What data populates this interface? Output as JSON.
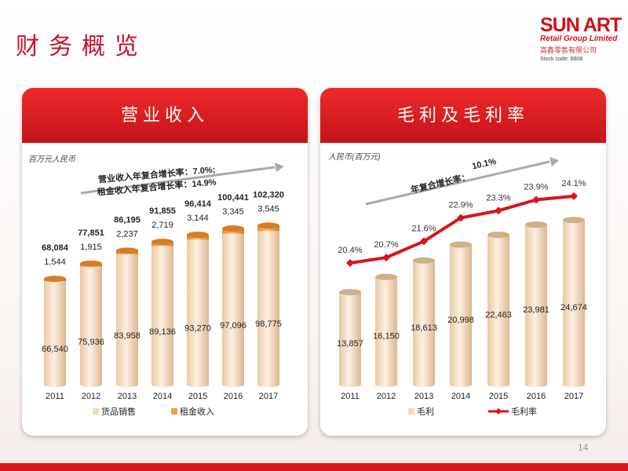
{
  "page": {
    "title": "财务概览",
    "page_number": "14"
  },
  "logo": {
    "name": "SUN ART",
    "sub": "Retail Group Limited",
    "cn": "高鑫零售有限公司",
    "stock": "Stock code: 6808"
  },
  "chart_data": [
    {
      "type": "bar",
      "title": "营业收入",
      "unit": "百万元人民币",
      "annotation": [
        "营业收入年复合增长率：7.0%;",
        "租金收入年复合增长率：14.9%"
      ],
      "categories": [
        "2011",
        "2012",
        "2013",
        "2014",
        "2015",
        "2016",
        "2017"
      ],
      "series": [
        {
          "name": "货品销售",
          "values": [
            66540,
            75936,
            83958,
            89136,
            93270,
            97096,
            98775
          ],
          "color": "#f3d9bb"
        },
        {
          "name": "租金收入",
          "values": [
            1544,
            1915,
            2237,
            2719,
            3144,
            3345,
            3545
          ],
          "color": "#f0a04b"
        }
      ],
      "totals": [
        68084,
        77851,
        86195,
        91855,
        96414,
        100441,
        102320
      ],
      "labels_values": [
        "66,540",
        "75,936",
        "83,958",
        "89,136",
        "93,270",
        "97,096",
        "98,775"
      ],
      "labels_rent": [
        "1,544",
        "1,915",
        "2,237",
        "2,719",
        "3,144",
        "3,345",
        "3,545"
      ],
      "labels_total": [
        "68,084",
        "77,851",
        "86,195",
        "91,855",
        "96,414",
        "100,441",
        "102,320"
      ],
      "legend": "bottom"
    },
    {
      "type": "bar+line",
      "title": "毛利及毛利率",
      "unit": "人民币(百万元)",
      "annotation": [
        "年复合增长率：",
        "10.1%"
      ],
      "categories": [
        "2011",
        "2012",
        "2013",
        "2014",
        "2015",
        "2016",
        "2017"
      ],
      "series": [
        {
          "name": "毛利",
          "values": [
            13857,
            16150,
            18613,
            20998,
            22463,
            23981,
            24674
          ],
          "color": "#f3d9bb"
        },
        {
          "name": "毛利率",
          "values": [
            20.4,
            20.7,
            21.6,
            22.9,
            23.3,
            23.9,
            24.1
          ],
          "color": "#d7141a"
        }
      ],
      "labels_bar": [
        "13,857",
        "16,150",
        "18,613",
        "20,998",
        "22,463",
        "23,981",
        "24,674"
      ],
      "labels_line": [
        "20.4%",
        "20.7%",
        "21.6%",
        "22.9%",
        "23.3%",
        "23.9%",
        "24.1%"
      ],
      "legend": "bottom"
    }
  ]
}
